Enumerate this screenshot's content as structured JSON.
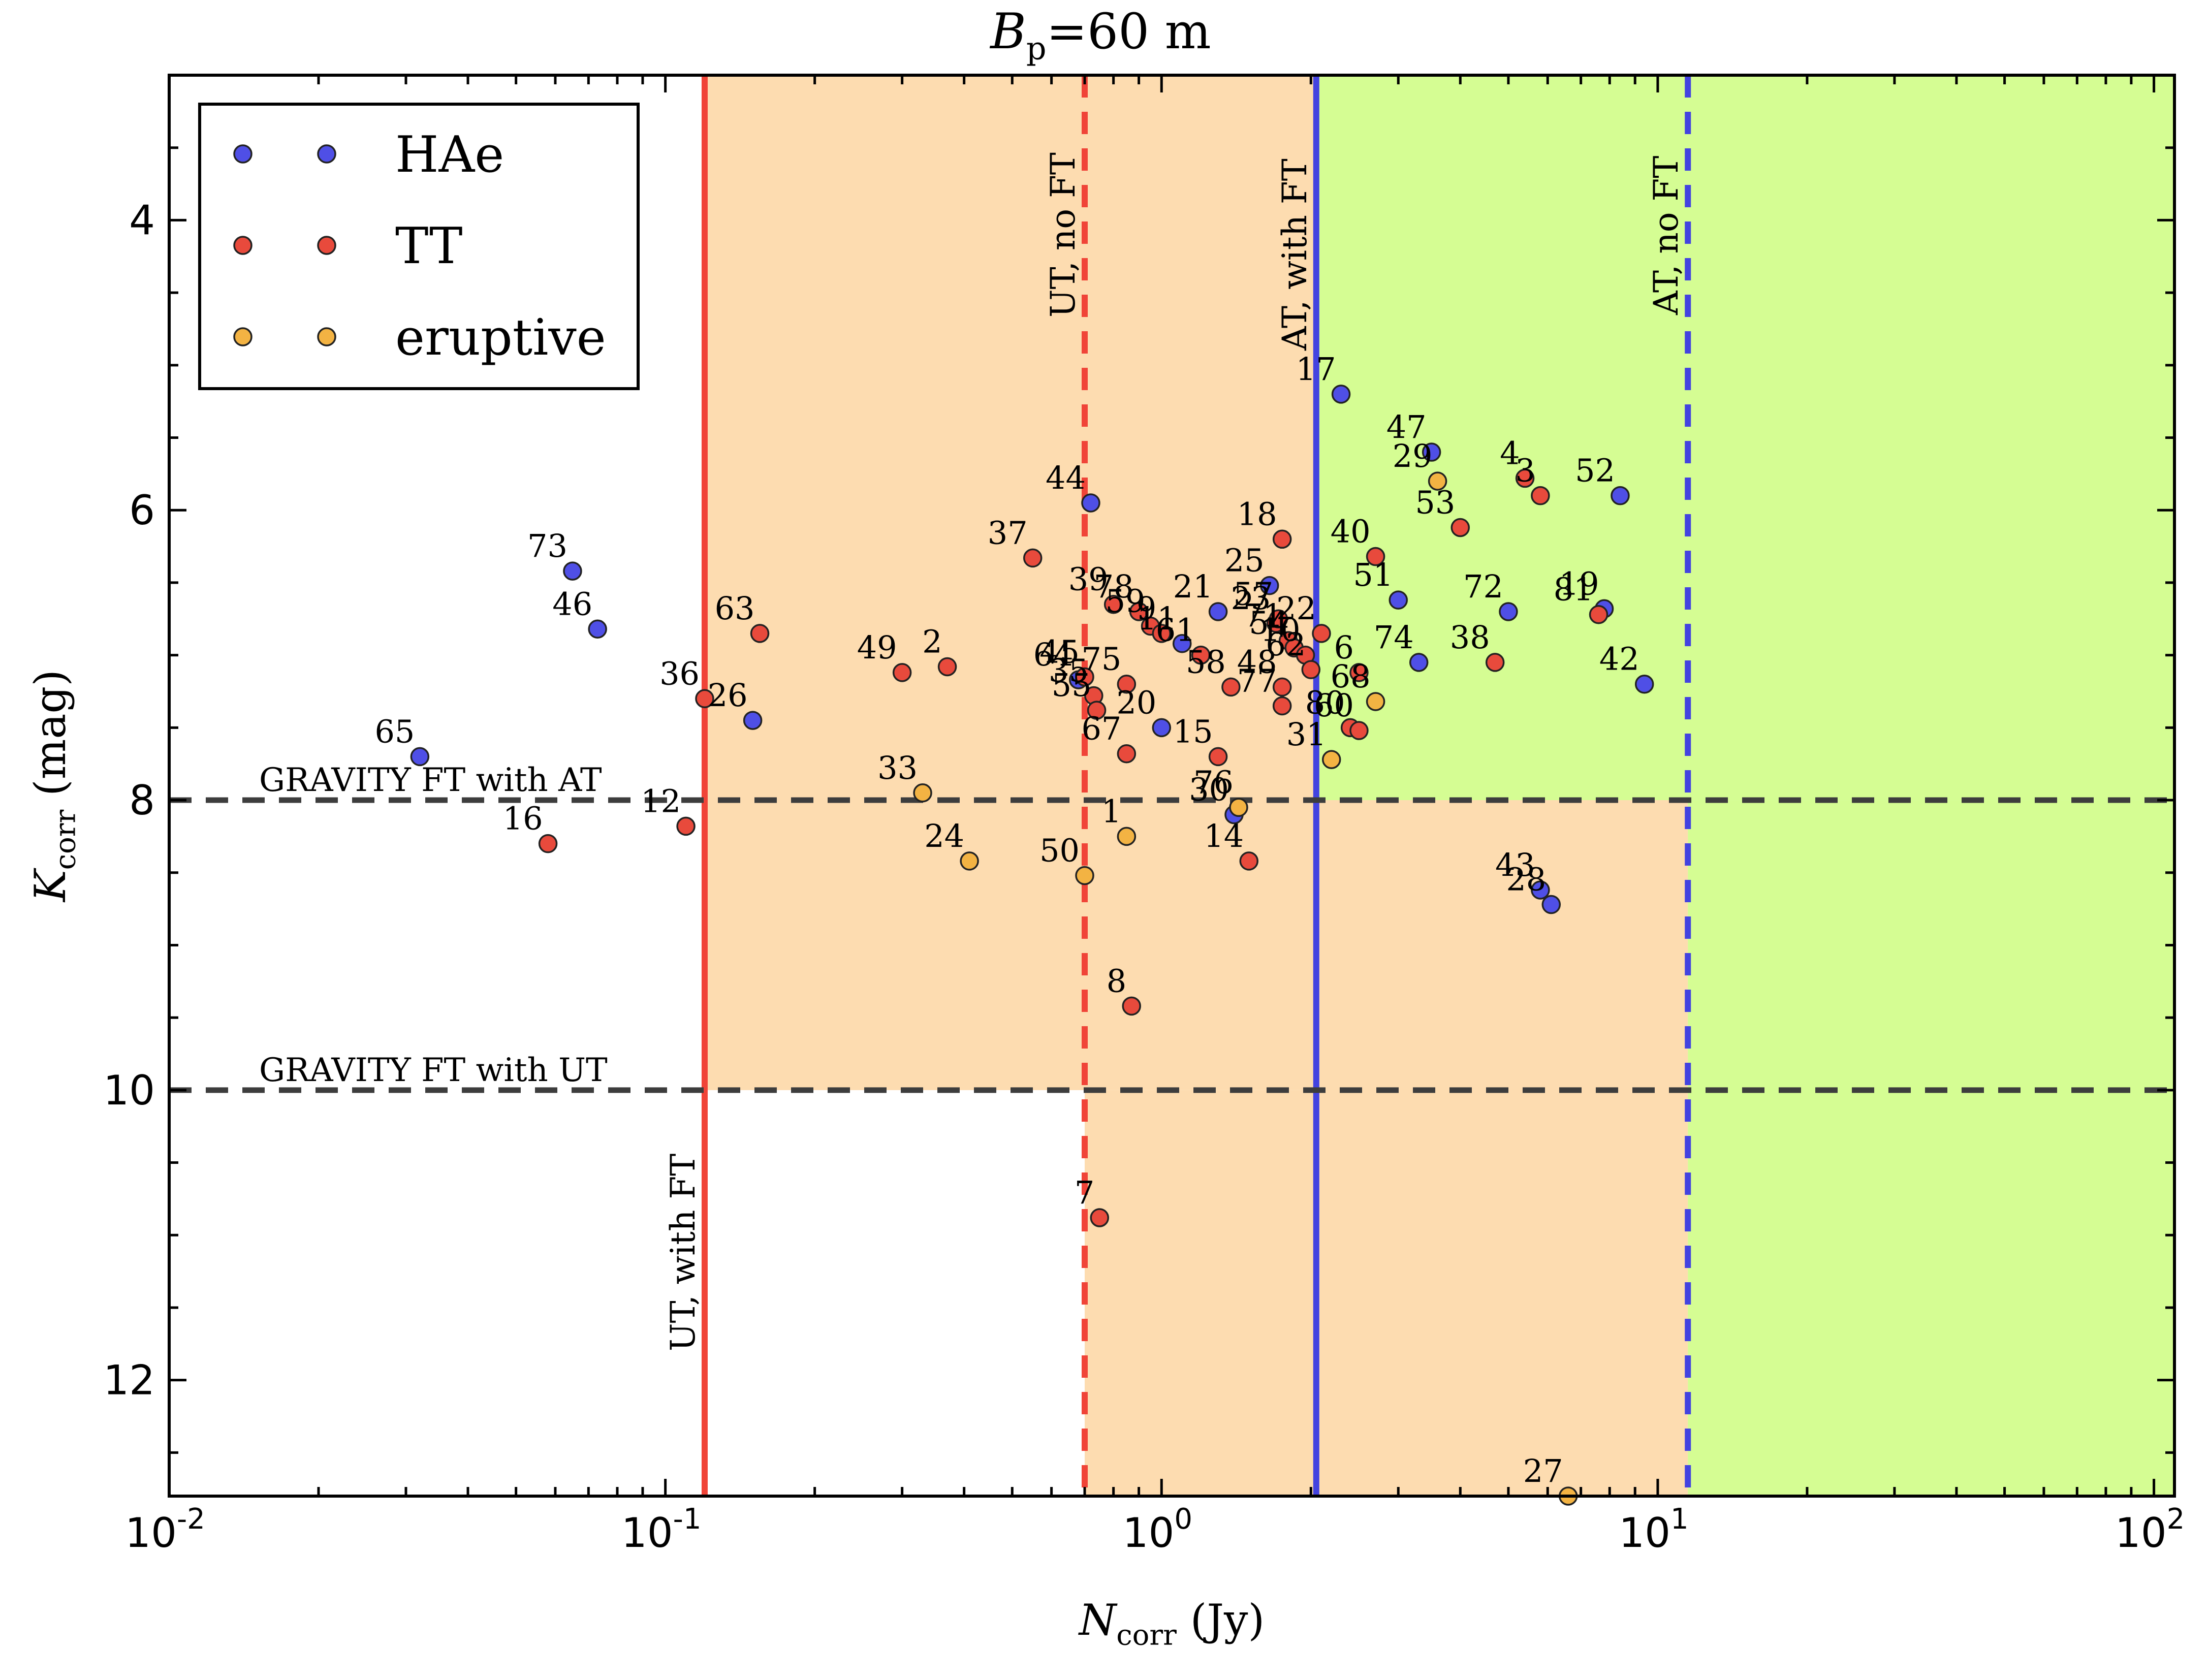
{
  "chart_data": {
    "type": "scatter",
    "title": "B_p=60 m",
    "title_parts": {
      "main": "B",
      "sub": "p",
      "rest": "=60 m"
    },
    "xlabel_parts": {
      "main": "N",
      "sub": "corr",
      "rest": " (Jy)"
    },
    "ylabel_parts": {
      "main": "K",
      "sub": "corr",
      "rest": " (mag)"
    },
    "x_scale": "log",
    "xlim": [
      0.01,
      110
    ],
    "ylim": [
      12.8,
      3.0
    ],
    "y_inverted": true,
    "x_ticks": [
      {
        "value": 0.01,
        "base": "10",
        "exp": "-2"
      },
      {
        "value": 0.1,
        "base": "10",
        "exp": "-1"
      },
      {
        "value": 1,
        "base": "10",
        "exp": "0"
      },
      {
        "value": 10,
        "base": "10",
        "exp": "1"
      },
      {
        "value": 100,
        "base": "10",
        "exp": "2"
      }
    ],
    "y_ticks": [
      4,
      6,
      8,
      10,
      12
    ],
    "grid": false,
    "legend_position": "top-left",
    "series": [
      {
        "name": "HAe",
        "color": "#4f4fe6",
        "points": [
          {
            "label": "17",
            "x": 2.3,
            "y": 5.2
          },
          {
            "label": "47",
            "x": 3.5,
            "y": 5.6
          },
          {
            "label": "52",
            "x": 8.4,
            "y": 5.9
          },
          {
            "label": "44",
            "x": 0.72,
            "y": 5.95
          },
          {
            "label": "51",
            "x": 3.0,
            "y": 6.62
          },
          {
            "label": "72",
            "x": 5.0,
            "y": 6.7
          },
          {
            "label": "19",
            "x": 7.8,
            "y": 6.68
          },
          {
            "label": "42",
            "x": 9.4,
            "y": 7.2
          },
          {
            "label": "74",
            "x": 3.3,
            "y": 7.05
          },
          {
            "label": "73",
            "x": 0.065,
            "y": 6.42
          },
          {
            "label": "46",
            "x": 0.073,
            "y": 6.82
          },
          {
            "label": "26",
            "x": 0.15,
            "y": 7.45
          },
          {
            "label": "65",
            "x": 0.032,
            "y": 7.7
          },
          {
            "label": "20",
            "x": 1.0,
            "y": 7.5
          },
          {
            "label": "21",
            "x": 1.3,
            "y": 6.7
          },
          {
            "label": "25",
            "x": 1.65,
            "y": 6.52
          },
          {
            "label": "11",
            "x": 1.1,
            "y": 6.92
          },
          {
            "label": "64",
            "x": 0.68,
            "y": 7.17
          },
          {
            "label": "30",
            "x": 1.4,
            "y": 8.1
          },
          {
            "label": "43",
            "x": 5.8,
            "y": 8.62
          },
          {
            "label": "28",
            "x": 6.1,
            "y": 8.72
          }
        ]
      },
      {
        "name": "TT",
        "color": "#e84a3c",
        "points": [
          {
            "label": "4",
            "x": 5.4,
            "y": 5.78
          },
          {
            "label": "3",
            "x": 5.8,
            "y": 5.9
          },
          {
            "label": "18",
            "x": 1.75,
            "y": 6.2
          },
          {
            "label": "40",
            "x": 2.7,
            "y": 6.32
          },
          {
            "label": "53",
            "x": 4.0,
            "y": 6.12
          },
          {
            "label": "37",
            "x": 0.55,
            "y": 6.33
          },
          {
            "label": "39",
            "x": 0.8,
            "y": 6.65
          },
          {
            "label": "78",
            "x": 0.9,
            "y": 6.7
          },
          {
            "label": "59",
            "x": 0.95,
            "y": 6.8
          },
          {
            "label": "9",
            "x": 1.0,
            "y": 6.85
          },
          {
            "label": "23",
            "x": 1.7,
            "y": 6.78
          },
          {
            "label": "57",
            "x": 1.72,
            "y": 6.75
          },
          {
            "label": "22",
            "x": 2.1,
            "y": 6.85
          },
          {
            "label": "71",
            "x": 1.8,
            "y": 6.9
          },
          {
            "label": "54",
            "x": 1.85,
            "y": 6.95
          },
          {
            "label": "10",
            "x": 1.95,
            "y": 7.0
          },
          {
            "label": "6",
            "x": 2.5,
            "y": 7.12
          },
          {
            "label": "81",
            "x": 7.6,
            "y": 6.72
          },
          {
            "label": "38",
            "x": 4.7,
            "y": 7.05
          },
          {
            "label": "63",
            "x": 0.155,
            "y": 6.85
          },
          {
            "label": "49",
            "x": 0.3,
            "y": 7.12
          },
          {
            "label": "2",
            "x": 0.37,
            "y": 7.08
          },
          {
            "label": "45",
            "x": 0.7,
            "y": 7.15
          },
          {
            "label": "75",
            "x": 0.85,
            "y": 7.2
          },
          {
            "label": "61",
            "x": 1.2,
            "y": 7.0
          },
          {
            "label": "48",
            "x": 1.75,
            "y": 7.22
          },
          {
            "label": "77",
            "x": 1.75,
            "y": 7.35
          },
          {
            "label": "36",
            "x": 0.12,
            "y": 7.3
          },
          {
            "label": "35",
            "x": 0.73,
            "y": 7.28
          },
          {
            "label": "55",
            "x": 0.74,
            "y": 7.38
          },
          {
            "label": "67",
            "x": 0.85,
            "y": 7.68
          },
          {
            "label": "15",
            "x": 1.3,
            "y": 7.7
          },
          {
            "label": "62",
            "x": 2.0,
            "y": 7.1
          },
          {
            "label": "80",
            "x": 2.4,
            "y": 7.5
          },
          {
            "label": "60",
            "x": 2.5,
            "y": 7.52
          },
          {
            "label": "12",
            "x": 0.11,
            "y": 8.18
          },
          {
            "label": "16",
            "x": 0.058,
            "y": 8.3
          },
          {
            "label": "14",
            "x": 1.5,
            "y": 8.42
          },
          {
            "label": "8",
            "x": 0.87,
            "y": 9.42
          },
          {
            "label": "7",
            "x": 0.75,
            "y": 10.88
          },
          {
            "label": "58",
            "x": 1.38,
            "y": 7.22
          }
        ]
      },
      {
        "name": "eruptive",
        "color": "#f3b343",
        "points": [
          {
            "label": "29",
            "x": 3.6,
            "y": 5.8
          },
          {
            "label": "68",
            "x": 2.7,
            "y": 7.32
          },
          {
            "label": "31",
            "x": 2.2,
            "y": 7.72
          },
          {
            "label": "33",
            "x": 0.33,
            "y": 7.95
          },
          {
            "label": "24",
            "x": 0.41,
            "y": 8.42
          },
          {
            "label": "1",
            "x": 0.85,
            "y": 8.25
          },
          {
            "label": "50",
            "x": 0.7,
            "y": 8.52
          },
          {
            "label": "76",
            "x": 1.43,
            "y": 8.05
          },
          {
            "label": "27",
            "x": 6.6,
            "y": 12.8
          }
        ]
      }
    ],
    "vertical_lines": [
      {
        "x": 0.12,
        "style": "solid",
        "color": "#f04438",
        "label": "UT, with FT"
      },
      {
        "x": 0.7,
        "style": "dashed",
        "color": "#f04438",
        "label": "UT, no FT"
      },
      {
        "x": 2.05,
        "style": "solid",
        "color": "#4343e0",
        "label": "AT, with FT"
      },
      {
        "x": 11.5,
        "style": "dashed",
        "color": "#4343e0",
        "label": "AT, no FT"
      }
    ],
    "horizontal_lines": [
      {
        "y": 8.0,
        "label": "GRAVITY FT with AT"
      },
      {
        "y": 10.0,
        "label": "GRAVITY FT with UT"
      }
    ],
    "regions": [
      {
        "name": "ut-feasible",
        "color": "#fddcb0"
      },
      {
        "name": "at-feasible",
        "color": "#d5fd93"
      }
    ],
    "axis_color": "#000000",
    "hline_color": "#3d3d3d"
  }
}
